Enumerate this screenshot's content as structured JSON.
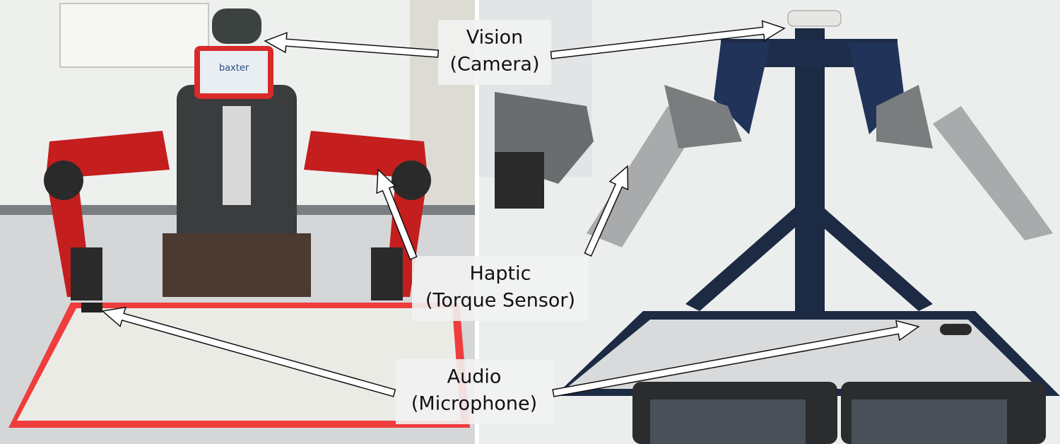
{
  "labels": [
    {
      "title": "Vision",
      "subtitle": "(Camera)"
    },
    {
      "title": "Haptic",
      "subtitle": "(Torque Sensor)"
    },
    {
      "title": "Audio",
      "subtitle": "(Microphone)"
    }
  ],
  "screen_text": "baxter"
}
